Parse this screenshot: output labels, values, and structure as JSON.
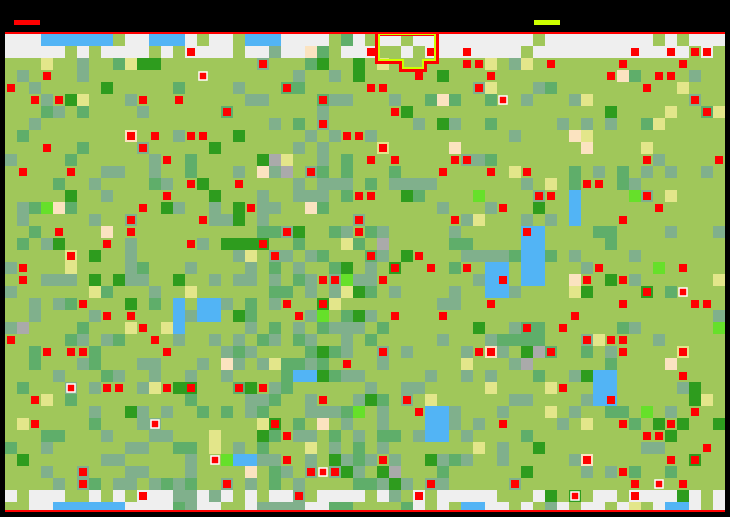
{
  "hud": {
    "player_one_color": "#ff0000",
    "player_two_color": "#ccff00"
  },
  "map": {
    "border_color": "#ff0000",
    "palette": {
      "grass": "#a0c75a",
      "snow": "#efefef",
      "water": "#52b4f5",
      "forest_light": "#80b08c",
      "forest": "#5fae6a",
      "forest_dark": "#2e9c1e",
      "meadow": "#e3e68a",
      "sand": "#fbe3c0",
      "rock": "#aaaaaa",
      "bright_grass": "#66e02a"
    },
    "unit_color": "#ff0000",
    "viewport_outline_color": "#ccff00"
  }
}
